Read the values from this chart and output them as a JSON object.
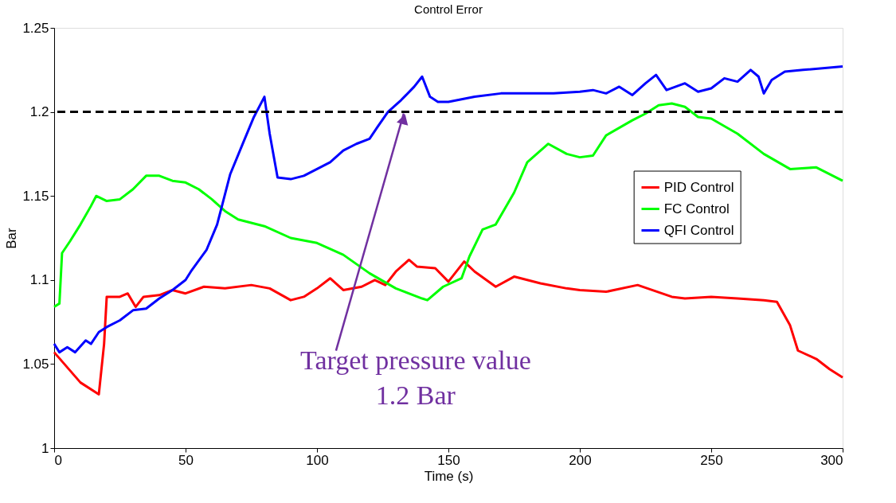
{
  "chart_data": {
    "type": "line",
    "title": "Control Error",
    "xlabel": "Time (s)",
    "ylabel": "Bar",
    "xlim": [
      0,
      300
    ],
    "xticks": [
      0,
      50,
      100,
      150,
      200,
      250,
      300
    ],
    "ylim": [
      1,
      1.25
    ],
    "yticks": [
      1,
      1.05,
      1.1,
      1.15,
      1.2,
      1.25
    ],
    "grid": false,
    "legend": "right",
    "line_style": "solid",
    "marker": "none",
    "ref_lines": [
      {
        "axis": "y",
        "value": 1.2,
        "color": "#000000",
        "line_style": "dashed"
      }
    ],
    "annotations": [
      {
        "text": "Target pressure value\n1.2 Bar",
        "x": 133,
        "y": 1.2
      }
    ],
    "series": [
      {
        "name": "PID Control",
        "color": "#ff0000",
        "x": [
          0,
          5,
          10,
          17,
          19,
          20,
          25,
          28,
          31,
          34,
          40,
          45,
          50,
          57,
          65,
          75,
          82,
          90,
          95,
          100,
          105,
          110,
          117,
          122,
          126,
          130,
          135,
          138,
          145,
          150,
          156,
          160,
          168,
          175,
          185,
          195,
          200,
          210,
          222,
          235,
          240,
          250,
          260,
          270,
          275,
          280,
          283,
          290,
          295,
          300
        ],
        "values": [
          1.057,
          1.048,
          1.039,
          1.032,
          1.062,
          1.09,
          1.09,
          1.092,
          1.084,
          1.09,
          1.091,
          1.094,
          1.092,
          1.096,
          1.095,
          1.097,
          1.095,
          1.088,
          1.09,
          1.095,
          1.101,
          1.094,
          1.096,
          1.1,
          1.097,
          1.105,
          1.112,
          1.108,
          1.107,
          1.099,
          1.111,
          1.105,
          1.096,
          1.102,
          1.098,
          1.095,
          1.094,
          1.093,
          1.097,
          1.09,
          1.089,
          1.09,
          1.089,
          1.088,
          1.087,
          1.073,
          1.058,
          1.053,
          1.047,
          1.042
        ]
      },
      {
        "name": "FC Control",
        "color": "#00ff00",
        "x": [
          0,
          2,
          3,
          6,
          10,
          14,
          16,
          20,
          25,
          30,
          35,
          40,
          45,
          50,
          55,
          60,
          65,
          70,
          75,
          80,
          90,
          100,
          110,
          120,
          130,
          140,
          142,
          148,
          155,
          158,
          163,
          168,
          175,
          180,
          188,
          195,
          200,
          205,
          210,
          220,
          225,
          230,
          235,
          240,
          245,
          250,
          260,
          270,
          280,
          290,
          300
        ],
        "values": [
          1.084,
          1.086,
          1.116,
          1.123,
          1.133,
          1.144,
          1.15,
          1.147,
          1.148,
          1.154,
          1.162,
          1.162,
          1.159,
          1.158,
          1.154,
          1.148,
          1.141,
          1.136,
          1.134,
          1.132,
          1.125,
          1.122,
          1.115,
          1.104,
          1.095,
          1.089,
          1.088,
          1.096,
          1.101,
          1.114,
          1.13,
          1.133,
          1.152,
          1.17,
          1.181,
          1.175,
          1.173,
          1.174,
          1.186,
          1.195,
          1.199,
          1.204,
          1.205,
          1.203,
          1.197,
          1.196,
          1.187,
          1.175,
          1.166,
          1.167,
          1.159
        ]
      },
      {
        "name": "QFI Control",
        "color": "#0000ff",
        "x": [
          0,
          2,
          5,
          8,
          12,
          14,
          17,
          20,
          25,
          30,
          35,
          40,
          45,
          50,
          52,
          58,
          62,
          67,
          72,
          76,
          80,
          82,
          85,
          90,
          95,
          100,
          105,
          110,
          115,
          120,
          123,
          127,
          132,
          137,
          140,
          143,
          146,
          150,
          160,
          170,
          180,
          190,
          200,
          205,
          210,
          215,
          220,
          225,
          229,
          233,
          240,
          245,
          250,
          255,
          260,
          265,
          268,
          270,
          273,
          278,
          285,
          300
        ],
        "values": [
          1.062,
          1.057,
          1.06,
          1.057,
          1.064,
          1.062,
          1.069,
          1.072,
          1.076,
          1.082,
          1.083,
          1.089,
          1.094,
          1.1,
          1.105,
          1.118,
          1.133,
          1.163,
          1.182,
          1.197,
          1.209,
          1.187,
          1.161,
          1.16,
          1.162,
          1.166,
          1.17,
          1.177,
          1.181,
          1.184,
          1.191,
          1.2,
          1.207,
          1.215,
          1.221,
          1.209,
          1.206,
          1.206,
          1.209,
          1.211,
          1.211,
          1.211,
          1.212,
          1.213,
          1.211,
          1.215,
          1.21,
          1.217,
          1.222,
          1.213,
          1.217,
          1.212,
          1.214,
          1.22,
          1.218,
          1.225,
          1.221,
          1.211,
          1.219,
          1.224,
          1.225,
          1.227
        ]
      }
    ]
  }
}
